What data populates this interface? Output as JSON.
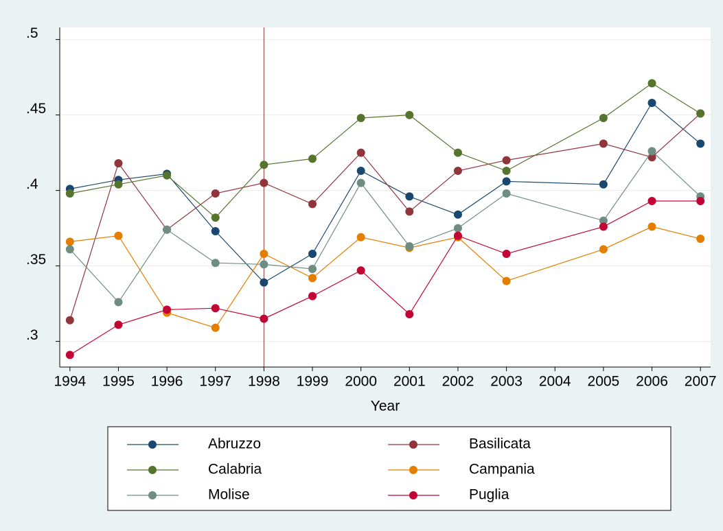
{
  "chart_data": {
    "type": "line",
    "x": [
      1994,
      1995,
      1996,
      1997,
      1998,
      1999,
      2000,
      2001,
      2002,
      2003,
      2005,
      2006,
      2007
    ],
    "series": [
      {
        "name": "Abruzzo",
        "color": "#1a476f",
        "values": [
          0.401,
          0.407,
          0.411,
          0.373,
          0.339,
          0.358,
          0.413,
          0.396,
          0.384,
          0.406,
          0.404,
          0.458,
          0.431
        ]
      },
      {
        "name": "Basilicata",
        "color": "#90353b",
        "values": [
          0.314,
          0.418,
          0.374,
          0.398,
          0.405,
          0.391,
          0.425,
          0.386,
          0.413,
          0.42,
          0.431,
          0.422,
          0.451
        ]
      },
      {
        "name": "Calabria",
        "color": "#55752f",
        "values": [
          0.398,
          0.404,
          0.41,
          0.382,
          0.417,
          0.421,
          0.448,
          0.45,
          0.425,
          0.413,
          0.448,
          0.471,
          0.451
        ]
      },
      {
        "name": "Campania",
        "color": "#e37e00",
        "values": [
          0.366,
          0.37,
          0.319,
          0.309,
          0.358,
          0.342,
          0.369,
          0.362,
          0.369,
          0.34,
          0.361,
          0.376,
          0.368
        ]
      },
      {
        "name": "Molise",
        "color": "#6e8e84",
        "values": [
          0.361,
          0.326,
          0.374,
          0.352,
          0.351,
          0.348,
          0.405,
          0.363,
          0.375,
          0.398,
          0.38,
          0.426,
          0.396
        ]
      },
      {
        "name": "Puglia",
        "color": "#c10534",
        "values": [
          0.291,
          0.311,
          0.321,
          0.322,
          0.315,
          0.33,
          0.347,
          0.318,
          0.37,
          0.358,
          0.376,
          0.393,
          0.393
        ]
      }
    ],
    "xlabel": "Year",
    "xlim": [
      1993.79,
      2007.21
    ],
    "xticks": [
      1994,
      1995,
      1996,
      1997,
      1998,
      1999,
      2000,
      2001,
      2002,
      2003,
      2004,
      2005,
      2006,
      2007
    ],
    "ylim": [
      0.283,
      0.508
    ],
    "yticks": [
      {
        "value": 0.3,
        "label": ".3"
      },
      {
        "value": 0.35,
        "label": ".35"
      },
      {
        "value": 0.4,
        "label": ".4"
      },
      {
        "value": 0.45,
        "label": ".45"
      },
      {
        "value": 0.5,
        "label": ".5"
      }
    ],
    "grid": true,
    "xline": 1998,
    "xline_color": "#90353b",
    "legend": "bottom"
  }
}
